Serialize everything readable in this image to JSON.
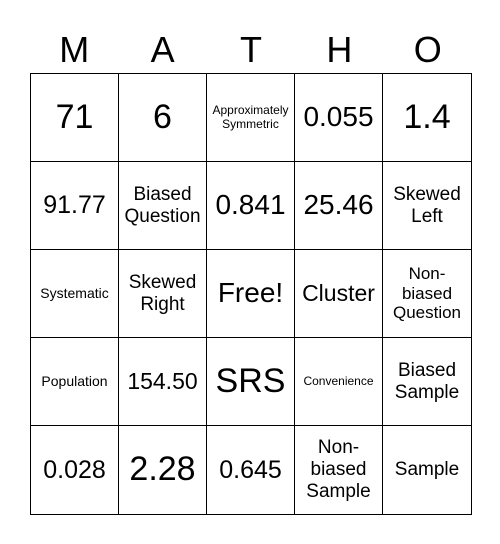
{
  "header": [
    "M",
    "A",
    "T",
    "H",
    "O"
  ],
  "cells": [
    [
      "71",
      "6",
      "Approximately Symmetric",
      "0.055",
      "1.4"
    ],
    [
      "91.77",
      "Biased Question",
      "0.841",
      "25.46",
      "Skewed Left"
    ],
    [
      "Systematic",
      "Skewed Right",
      "Free!",
      "Cluster",
      "Non-biased Question"
    ],
    [
      "Population",
      "154.50",
      "SRS",
      "Convenience",
      "Biased Sample"
    ],
    [
      "0.028",
      "2.28",
      "0.645",
      "Non-biased Sample",
      "Sample"
    ]
  ]
}
